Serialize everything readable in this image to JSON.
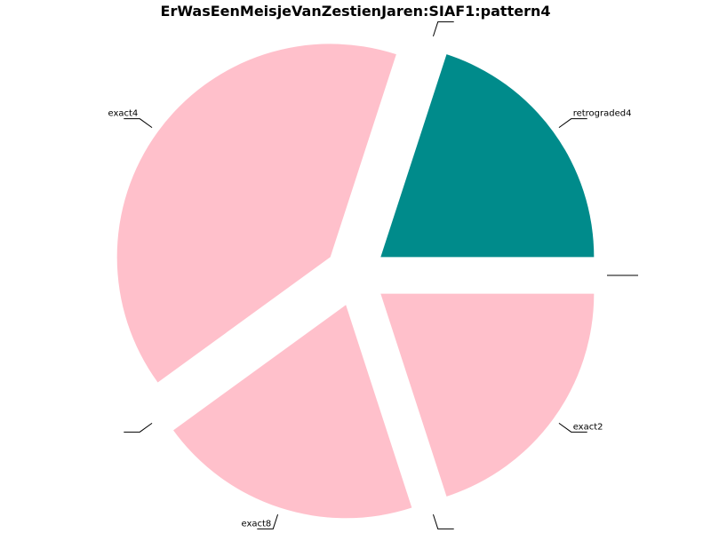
{
  "chart_data": {
    "type": "pie",
    "title": "ErWasEenMeisjeVanZestienJaren:SIAF1:pattern4",
    "slices": [
      {
        "label": "exact2",
        "value": 1,
        "color": "#ffc0cb"
      },
      {
        "label": "",
        "value": 0,
        "color": "#ffc0cb"
      },
      {
        "label": "exact8",
        "value": 1,
        "color": "#ffc0cb"
      },
      {
        "label": "",
        "value": 0,
        "color": "#ffc0cb"
      },
      {
        "label": "exact4",
        "value": 2,
        "color": "#ffc0cb"
      },
      {
        "label": "",
        "value": 0,
        "color": "#ffc0cb"
      },
      {
        "label": "retrograded4",
        "value": 1,
        "color": "#008b8b"
      },
      {
        "label": "",
        "value": 0,
        "color": "#ffc0cb"
      }
    ]
  }
}
